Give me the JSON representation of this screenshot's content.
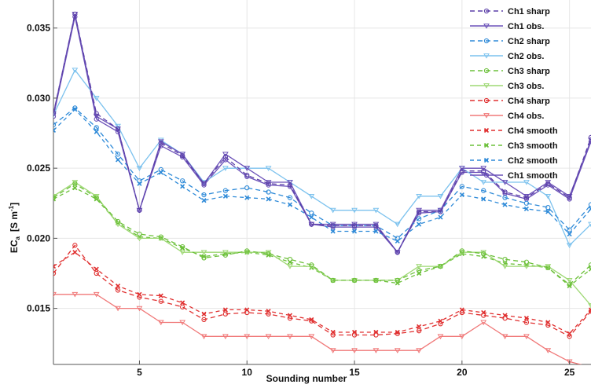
{
  "chart_data": {
    "type": "line",
    "title": "",
    "xlabel": "Sounding number",
    "ylabel": "EC",
    "ylabel_subscript": "a",
    "ylabel_units": "[S m",
    "ylabel_units_sup": "-1",
    "ylabel_units_close": "]",
    "xlim": [
      1,
      26
    ],
    "ylim": [
      0.011,
      0.037
    ],
    "xticks": [
      5,
      10,
      15,
      20,
      25
    ],
    "xtick_labels": [
      "5",
      "10",
      "15",
      "20",
      "25"
    ],
    "yticks": [
      0.015,
      0.02,
      0.025,
      0.03,
      0.035
    ],
    "ytick_labels": [
      "0.015",
      "0.020",
      "0.025",
      "0.030",
      "0.035"
    ],
    "grid": true,
    "legend_position": "top-right",
    "x": [
      1,
      2,
      3,
      4,
      5,
      6,
      7,
      8,
      9,
      10,
      11,
      12,
      13,
      14,
      15,
      16,
      17,
      18,
      19,
      20,
      21,
      22,
      23,
      24,
      25,
      26
    ],
    "series": [
      {
        "name": "Ch1 sharp",
        "color": "#5b3fa8",
        "dash": "6,4",
        "marker": "circle",
        "values": [
          0.0289,
          0.036,
          0.0289,
          0.0278,
          0.022,
          0.0268,
          0.0259,
          0.0239,
          0.0258,
          0.0245,
          0.0239,
          0.0238,
          0.021,
          0.0209,
          0.0209,
          0.0209,
          0.019,
          0.0219,
          0.0219,
          0.0248,
          0.0248,
          0.0233,
          0.0229,
          0.0239,
          0.0229,
          0.0272
        ]
      },
      {
        "name": "Ch1 obs.",
        "color": "#6a50b8",
        "dash": "",
        "marker": "triangle",
        "values": [
          0.0289,
          0.036,
          0.0287,
          0.0278,
          0.022,
          0.0269,
          0.026,
          0.0239,
          0.026,
          0.025,
          0.024,
          0.024,
          0.021,
          0.021,
          0.021,
          0.021,
          0.019,
          0.022,
          0.022,
          0.025,
          0.025,
          0.024,
          0.023,
          0.024,
          0.023,
          0.027
        ]
      },
      {
        "name": "Ch2 sharp",
        "color": "#2e8ad8",
        "dash": "6,4",
        "marker": "circle",
        "values": [
          0.0281,
          0.0293,
          0.0279,
          0.026,
          0.0241,
          0.0249,
          0.0241,
          0.0231,
          0.0234,
          0.0236,
          0.0233,
          0.0229,
          0.0218,
          0.0209,
          0.0209,
          0.0209,
          0.02,
          0.0214,
          0.022,
          0.0237,
          0.0234,
          0.0229,
          0.0225,
          0.0222,
          0.0206,
          0.0224
        ]
      },
      {
        "name": "Ch2 obs.",
        "color": "#7cc2ee",
        "dash": "",
        "marker": "triangle",
        "values": [
          0.0288,
          0.032,
          0.03,
          0.028,
          0.025,
          0.027,
          0.026,
          0.024,
          0.025,
          0.025,
          0.025,
          0.024,
          0.023,
          0.022,
          0.022,
          0.022,
          0.021,
          0.023,
          0.023,
          0.025,
          0.024,
          0.024,
          0.024,
          0.023,
          0.0195,
          0.021
        ]
      },
      {
        "name": "Ch3 sharp",
        "color": "#6cc03a",
        "dash": "6,4",
        "marker": "circle",
        "values": [
          0.0229,
          0.0239,
          0.0229,
          0.0212,
          0.0203,
          0.0201,
          0.0194,
          0.0186,
          0.0188,
          0.0191,
          0.0189,
          0.0185,
          0.0181,
          0.017,
          0.017,
          0.017,
          0.017,
          0.0177,
          0.018,
          0.0191,
          0.0189,
          0.0185,
          0.0183,
          0.0179,
          0.0167,
          0.0181
        ]
      },
      {
        "name": "Ch3 obs.",
        "color": "#9ed874",
        "dash": "",
        "marker": "triangle",
        "values": [
          0.023,
          0.024,
          0.023,
          0.021,
          0.02,
          0.02,
          0.019,
          0.019,
          0.019,
          0.019,
          0.019,
          0.018,
          0.018,
          0.017,
          0.017,
          0.017,
          0.017,
          0.018,
          0.018,
          0.019,
          0.019,
          0.018,
          0.018,
          0.018,
          0.017,
          0.0152
        ]
      },
      {
        "name": "Ch4 sharp",
        "color": "#e03030",
        "dash": "6,4",
        "marker": "circle",
        "values": [
          0.0175,
          0.0195,
          0.0175,
          0.0163,
          0.0158,
          0.0155,
          0.0151,
          0.0142,
          0.0146,
          0.0147,
          0.0146,
          0.0143,
          0.0141,
          0.0131,
          0.0131,
          0.0131,
          0.0132,
          0.0134,
          0.0139,
          0.0147,
          0.0145,
          0.0143,
          0.014,
          0.0138,
          0.013,
          0.0148
        ]
      },
      {
        "name": "Ch4 obs.",
        "color": "#f07878",
        "dash": "",
        "marker": "triangle",
        "values": [
          0.016,
          0.016,
          0.016,
          0.015,
          0.015,
          0.014,
          0.014,
          0.013,
          0.013,
          0.013,
          0.013,
          0.013,
          0.013,
          0.012,
          0.012,
          0.012,
          0.012,
          0.012,
          0.013,
          0.013,
          0.014,
          0.013,
          0.013,
          0.012,
          0.0112,
          0.0108
        ]
      },
      {
        "name": "Ch4 smooth",
        "color": "#e03030",
        "dash": "5,4",
        "marker": "x",
        "values": [
          0.018,
          0.019,
          0.0178,
          0.0166,
          0.016,
          0.0159,
          0.0154,
          0.0146,
          0.0149,
          0.0149,
          0.0148,
          0.0145,
          0.0142,
          0.0133,
          0.0133,
          0.0133,
          0.0133,
          0.0137,
          0.0141,
          0.0149,
          0.0147,
          0.0145,
          0.0143,
          0.014,
          0.0132,
          0.0149
        ]
      },
      {
        "name": "Ch3 smooth",
        "color": "#6cc03a",
        "dash": "5,4",
        "marker": "x",
        "values": [
          0.0228,
          0.0236,
          0.0228,
          0.0211,
          0.0201,
          0.02,
          0.0193,
          0.0187,
          0.0189,
          0.019,
          0.0188,
          0.0183,
          0.0179,
          0.017,
          0.017,
          0.017,
          0.0168,
          0.0175,
          0.018,
          0.0189,
          0.0187,
          0.0182,
          0.0181,
          0.0179,
          0.0166,
          0.0178
        ]
      },
      {
        "name": "Ch2 smooth",
        "color": "#2e8ad8",
        "dash": "5,4",
        "marker": "x",
        "values": [
          0.0277,
          0.0292,
          0.0276,
          0.0256,
          0.0239,
          0.0247,
          0.0237,
          0.0227,
          0.023,
          0.0229,
          0.0228,
          0.0224,
          0.0215,
          0.0205,
          0.0205,
          0.0205,
          0.0198,
          0.021,
          0.0215,
          0.0231,
          0.0228,
          0.0224,
          0.0221,
          0.0219,
          0.0203,
          0.0221
        ]
      },
      {
        "name": "Ch1 smooth",
        "color": "#6a50b8",
        "dash": "",
        "marker": "circle-open",
        "values": [
          0.0287,
          0.0358,
          0.0285,
          0.0276,
          0.022,
          0.0266,
          0.0258,
          0.0238,
          0.0256,
          0.0244,
          0.0238,
          0.0237,
          0.021,
          0.0208,
          0.0208,
          0.0208,
          0.019,
          0.0218,
          0.0219,
          0.0247,
          0.0247,
          0.0232,
          0.0228,
          0.0238,
          0.0228,
          0.0269
        ]
      }
    ]
  }
}
